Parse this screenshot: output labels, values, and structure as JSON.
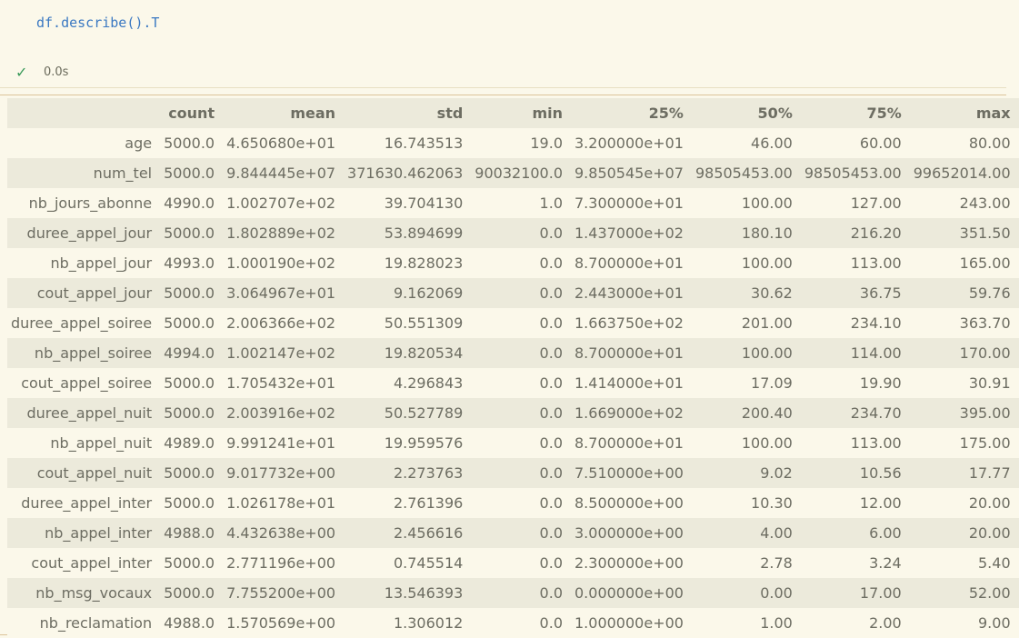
{
  "cell": {
    "code": "df.describe().T",
    "status_icon": "check-icon",
    "exec_time": "0.0s"
  },
  "table": {
    "columns": [
      "count",
      "mean",
      "std",
      "min",
      "25%",
      "50%",
      "75%",
      "max"
    ],
    "rows": [
      {
        "index": "age",
        "values": [
          "5000.0",
          "4.650680e+01",
          "16.743513",
          "19.0",
          "3.200000e+01",
          "46.00",
          "60.00",
          "80.00"
        ]
      },
      {
        "index": "num_tel",
        "values": [
          "5000.0",
          "9.844445e+07",
          "371630.462063",
          "90032100.0",
          "9.850545e+07",
          "98505453.00",
          "98505453.00",
          "99652014.00"
        ]
      },
      {
        "index": "nb_jours_abonne",
        "values": [
          "4990.0",
          "1.002707e+02",
          "39.704130",
          "1.0",
          "7.300000e+01",
          "100.00",
          "127.00",
          "243.00"
        ]
      },
      {
        "index": "duree_appel_jour",
        "values": [
          "5000.0",
          "1.802889e+02",
          "53.894699",
          "0.0",
          "1.437000e+02",
          "180.10",
          "216.20",
          "351.50"
        ]
      },
      {
        "index": "nb_appel_jour",
        "values": [
          "4993.0",
          "1.000190e+02",
          "19.828023",
          "0.0",
          "8.700000e+01",
          "100.00",
          "113.00",
          "165.00"
        ]
      },
      {
        "index": "cout_appel_jour",
        "values": [
          "5000.0",
          "3.064967e+01",
          "9.162069",
          "0.0",
          "2.443000e+01",
          "30.62",
          "36.75",
          "59.76"
        ]
      },
      {
        "index": "duree_appel_soiree",
        "values": [
          "5000.0",
          "2.006366e+02",
          "50.551309",
          "0.0",
          "1.663750e+02",
          "201.00",
          "234.10",
          "363.70"
        ]
      },
      {
        "index": "nb_appel_soiree",
        "values": [
          "4994.0",
          "1.002147e+02",
          "19.820534",
          "0.0",
          "8.700000e+01",
          "100.00",
          "114.00",
          "170.00"
        ]
      },
      {
        "index": "cout_appel_soiree",
        "values": [
          "5000.0",
          "1.705432e+01",
          "4.296843",
          "0.0",
          "1.414000e+01",
          "17.09",
          "19.90",
          "30.91"
        ]
      },
      {
        "index": "duree_appel_nuit",
        "values": [
          "5000.0",
          "2.003916e+02",
          "50.527789",
          "0.0",
          "1.669000e+02",
          "200.40",
          "234.70",
          "395.00"
        ]
      },
      {
        "index": "nb_appel_nuit",
        "values": [
          "4989.0",
          "9.991241e+01",
          "19.959576",
          "0.0",
          "8.700000e+01",
          "100.00",
          "113.00",
          "175.00"
        ]
      },
      {
        "index": "cout_appel_nuit",
        "values": [
          "5000.0",
          "9.017732e+00",
          "2.273763",
          "0.0",
          "7.510000e+00",
          "9.02",
          "10.56",
          "17.77"
        ]
      },
      {
        "index": "duree_appel_inter",
        "values": [
          "5000.0",
          "1.026178e+01",
          "2.761396",
          "0.0",
          "8.500000e+00",
          "10.30",
          "12.00",
          "20.00"
        ]
      },
      {
        "index": "nb_appel_inter",
        "values": [
          "4988.0",
          "4.432638e+00",
          "2.456616",
          "0.0",
          "3.000000e+00",
          "4.00",
          "6.00",
          "20.00"
        ]
      },
      {
        "index": "cout_appel_inter",
        "values": [
          "5000.0",
          "2.771196e+00",
          "0.745514",
          "0.0",
          "2.300000e+00",
          "2.78",
          "3.24",
          "5.40"
        ]
      },
      {
        "index": "nb_msg_vocaux",
        "values": [
          "5000.0",
          "7.755200e+00",
          "13.546393",
          "0.0",
          "0.000000e+00",
          "0.00",
          "17.00",
          "52.00"
        ]
      },
      {
        "index": "nb_reclamation",
        "values": [
          "4988.0",
          "1.570569e+00",
          "1.306012",
          "0.0",
          "1.000000e+00",
          "1.00",
          "2.00",
          "9.00"
        ]
      }
    ]
  },
  "colors": {
    "code": "#3b79c2",
    "success": "#3a9a5a",
    "row_shade": "#eceadb",
    "background": "#fbf8ea",
    "output_border": "#dcc49a"
  }
}
